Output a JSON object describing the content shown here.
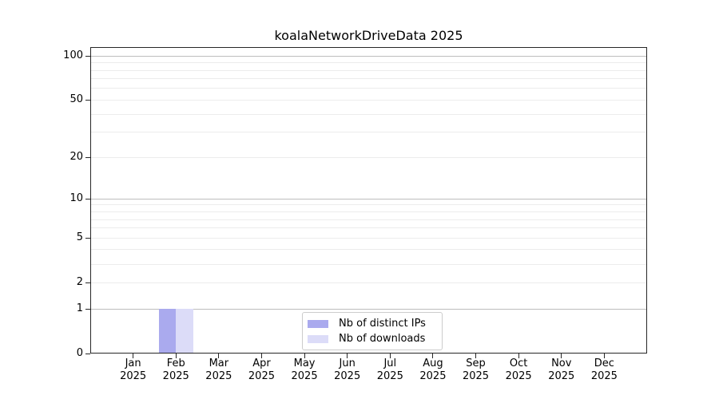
{
  "chart_data": {
    "type": "bar",
    "title": "koalaNetworkDriveData 2025",
    "x_months": [
      "Jan",
      "Feb",
      "Mar",
      "Apr",
      "May",
      "Jun",
      "Jul",
      "Aug",
      "Sep",
      "Oct",
      "Nov",
      "Dec"
    ],
    "x_year": "2025",
    "categories": [
      "Jan 2025",
      "Feb 2025",
      "Mar 2025",
      "Apr 2025",
      "May 2025",
      "Jun 2025",
      "Jul 2025",
      "Aug 2025",
      "Sep 2025",
      "Oct 2025",
      "Nov 2025",
      "Dec 2025"
    ],
    "series": [
      {
        "name": "Nb of distinct IPs",
        "color": "#aaaaee",
        "values": [
          0,
          1,
          0,
          0,
          0,
          0,
          0,
          0,
          0,
          0,
          0,
          0
        ]
      },
      {
        "name": "Nb of downloads",
        "color": "#dcdcf8",
        "values": [
          0,
          1,
          0,
          0,
          0,
          0,
          0,
          0,
          0,
          0,
          0,
          0
        ]
      }
    ],
    "yscale": "log1p",
    "ylim": [
      0,
      115
    ],
    "y_ticks": [
      0,
      1,
      2,
      5,
      10,
      20,
      50,
      100
    ],
    "y_major_gridlines": [
      1,
      10,
      100
    ],
    "y_minor_gridlines": [
      2,
      3,
      4,
      5,
      6,
      7,
      8,
      9,
      20,
      30,
      40,
      50,
      60,
      70,
      80,
      90
    ],
    "grid": "horizontal",
    "legend_position": "lower center",
    "colors": {
      "grid_minor": "#ececec",
      "grid_major": "#bdbdbd",
      "axis": "#262626",
      "text": "#000000"
    }
  }
}
